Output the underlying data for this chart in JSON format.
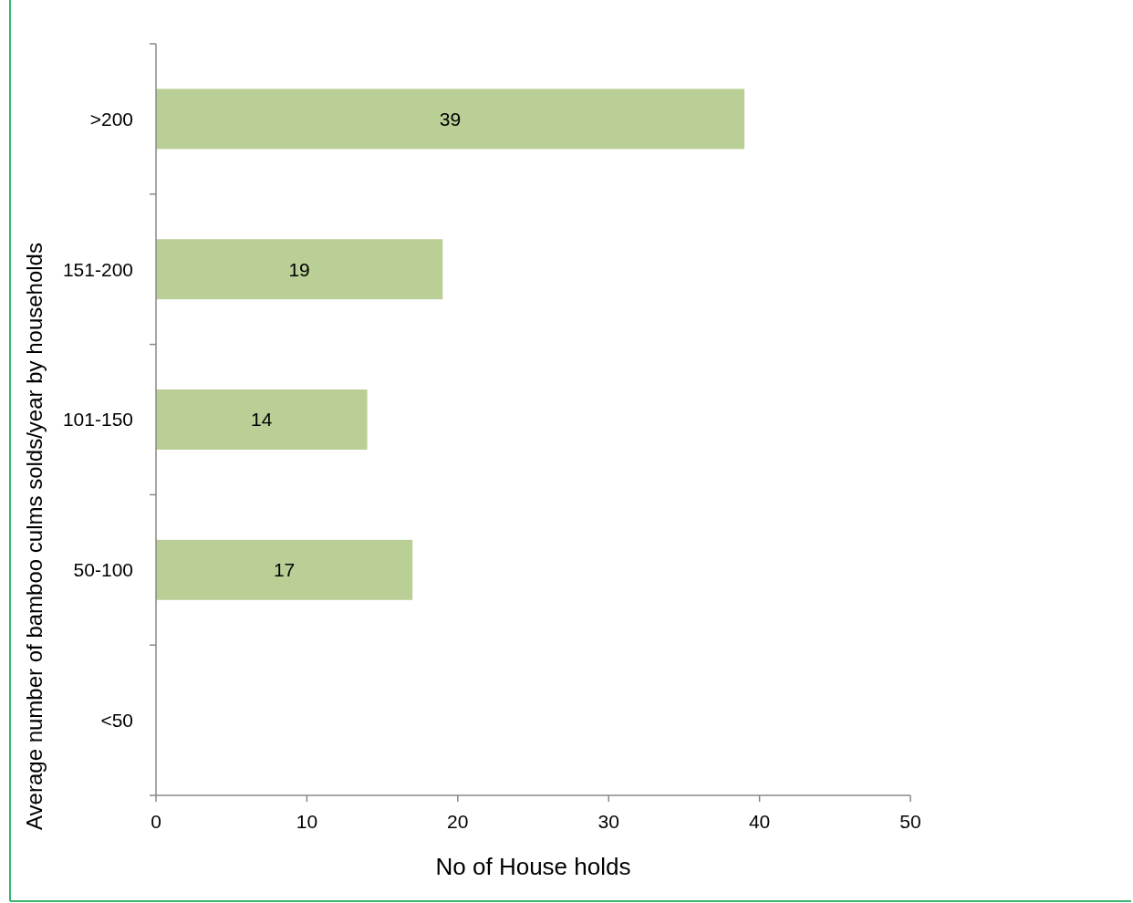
{
  "chart_data": {
    "type": "bar",
    "orientation": "horizontal",
    "categories": [
      ">200",
      "151-200",
      "101-150",
      "50-100",
      "<50"
    ],
    "values": [
      39,
      19,
      14,
      17,
      null
    ],
    "color": "#b9cf96",
    "data_labels": true,
    "xlim": [
      0,
      50
    ],
    "xticks": [
      0,
      10,
      20,
      30,
      40,
      50
    ],
    "xlabel": "No of House holds",
    "ylabel": "Average number of bamboo culms solds/year by households",
    "grid": false
  }
}
